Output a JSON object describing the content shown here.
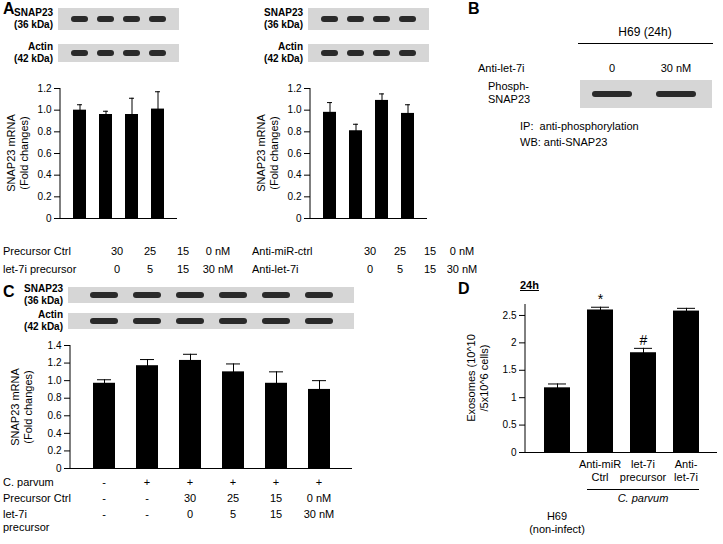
{
  "chart_data": [
    {
      "type": "bar",
      "panel_letter": "A",
      "y_label": "SNAP23 mRNA\n(Fold changes)",
      "categories": [
        null,
        null,
        null,
        null
      ],
      "values": [
        1.0,
        0.96,
        0.96,
        1.01
      ],
      "errors": [
        0.05,
        0.03,
        0.15,
        0.16
      ],
      "color": "#000000",
      "ylim": [
        0,
        1.2
      ],
      "yticks": [
        0,
        0.2,
        0.4,
        0.6,
        0.8,
        {
          "value": 1,
          "label": "1.0"
        },
        1.2
      ],
      "blots": [
        "SNAP23\n(36 kDa)",
        "Actin\n(42 kDa)"
      ],
      "conditions": [
        {
          "label": "Precursor Ctrl",
          "values": [
            "30",
            "25",
            "15",
            "0 nM"
          ]
        },
        {
          "label": "let-7i precursor",
          "values": [
            "0",
            "5",
            "15",
            "30 nM"
          ]
        }
      ]
    },
    {
      "type": "bar",
      "y_label": "SNAP23 mRNA\n(Fold changes)",
      "categories": [
        null,
        null,
        null,
        null
      ],
      "values": [
        0.98,
        0.81,
        1.09,
        0.97
      ],
      "errors": [
        0.09,
        0.06,
        0.06,
        0.08
      ],
      "color": "#000000",
      "ylim": [
        0,
        1.2
      ],
      "yticks": [
        0,
        0.2,
        0.4,
        0.6,
        0.8,
        {
          "value": 1,
          "label": "1.0"
        },
        1.2
      ],
      "blots": [
        "SNAP23\n(36 kDa)",
        "Actin\n(42 kDa)"
      ],
      "conditions": [
        {
          "label": "Anti-miR-ctrl",
          "values": [
            "30",
            "25",
            "15",
            "0 nM"
          ]
        },
        {
          "label": "Anti-let-7i",
          "values": [
            "0",
            "5",
            "15",
            "30 nM"
          ]
        }
      ]
    },
    {
      "type": "bar",
      "panel_letter": "C",
      "y_label": "SNAP23 mRNA\n(Fold changes)",
      "categories": [
        null,
        null,
        null,
        null,
        null,
        null
      ],
      "values": [
        0.97,
        1.17,
        1.23,
        1.1,
        0.97,
        0.9
      ],
      "errors": [
        0.04,
        0.07,
        0.07,
        0.09,
        0.13,
        0.1
      ],
      "color": "#000000",
      "ylim": [
        0,
        1.4
      ],
      "yticks": [
        0,
        0.2,
        0.4,
        0.6,
        0.8,
        {
          "value": 1,
          "label": "1.0"
        },
        1.2,
        1.4
      ],
      "blots": [
        "SNAP23\n(36 kDa)",
        "Actin\n(42 kDa)"
      ],
      "conditions": [
        {
          "label": "C. parvum",
          "values": [
            "-",
            "+",
            "+",
            "+",
            "+",
            "+"
          ]
        },
        {
          "label": "Precursor Ctrl",
          "values": [
            "-",
            "-",
            "30",
            "25",
            "15",
            "0 nM"
          ]
        },
        {
          "label": "let-7i\nprecursor",
          "values": [
            "-",
            "-",
            "0",
            "5",
            "15",
            "30 nM"
          ]
        }
      ]
    },
    {
      "type": "bar",
      "panel_letter": "D",
      "title": "24h",
      "y_label": "Exosomes (10^10\n/5x10^6 cells)",
      "categories": [
        "H69\n(non-infect)",
        "Anti-miR\nCtrl",
        "let-7i\nprecursor",
        "Anti-\nlet-7i"
      ],
      "values": [
        1.18,
        2.6,
        1.82,
        2.58
      ],
      "errors": [
        0.07,
        0.05,
        0.08,
        0.05
      ],
      "color": "#000000",
      "ylim": [
        0,
        2.7
      ],
      "yticks": [
        0,
        0.5,
        1,
        1.5,
        2,
        2.5
      ],
      "annotations": [
        {
          "index": 1,
          "text": "*"
        },
        {
          "index": 2,
          "text": "#"
        }
      ],
      "group": {
        "label": "C. parvum",
        "from": 1,
        "to": 3
      }
    }
  ],
  "panel_B": {
    "panel_letter": "B",
    "title": "H69 (24h)",
    "treatment": {
      "label": "Anti-let-7i",
      "values": [
        "0",
        "30 nM"
      ]
    },
    "blot_label": "Phosph-\nSNAP23",
    "notes": [
      "IP:  anti-phosphorylation",
      "WB: anti-SNAP23"
    ]
  }
}
